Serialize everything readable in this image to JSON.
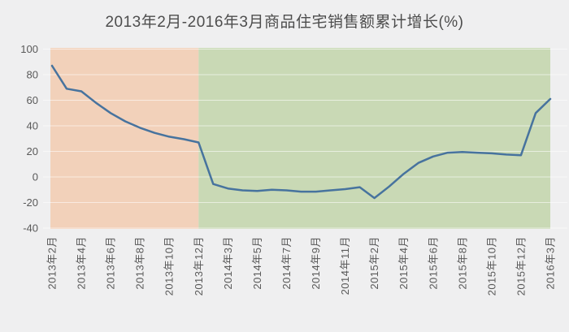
{
  "title": "2013年2月-2016年3月商品住宅销售额累计增长(%)",
  "colors": {
    "background": "#efeff0",
    "region_decline": "#f2d1ba",
    "region_growth": "#c9d9b5",
    "line": "#47739e",
    "grid": "rgba(255,255,255,0.55)",
    "title_text": "#4d4d4d",
    "axis_text": "#595959"
  },
  "chart_data": {
    "type": "line",
    "title": "2013年2月-2016年3月商品住宅销售额累计增长(%)",
    "xlabel": "",
    "ylabel": "",
    "ylim": [
      -40,
      100
    ],
    "y_ticks": [
      100,
      80,
      60,
      40,
      20,
      0,
      -20,
      -40
    ],
    "grid": true,
    "legend": "none",
    "tick_step": 2,
    "x_tick_labels_visible": [
      "2013年2月",
      "2013年4月",
      "2013年6月",
      "2013年8月",
      "2013年10月",
      "2013年12月",
      "2014年3月",
      "2014年5月",
      "2014年7月",
      "2014年9月",
      "2014年11月",
      "2015年2月",
      "2015年4月",
      "2015年6月",
      "2015年8月",
      "2015年10月",
      "2015年12月",
      "2016年3月"
    ],
    "points": [
      {
        "label": "2013年2月",
        "value": 87
      },
      {
        "label": "2013年3月",
        "value": 69
      },
      {
        "label": "2013年4月",
        "value": 67
      },
      {
        "label": "2013年5月",
        "value": 58
      },
      {
        "label": "2013年6月",
        "value": 50
      },
      {
        "label": "2013年7月",
        "value": 43.5
      },
      {
        "label": "2013年8月",
        "value": 38.5
      },
      {
        "label": "2013年9月",
        "value": 34.5
      },
      {
        "label": "2013年10月",
        "value": 31.5
      },
      {
        "label": "2013年11月",
        "value": 29.5
      },
      {
        "label": "2013年12月",
        "value": 27
      },
      {
        "label": "2014年2月",
        "value": -5.5
      },
      {
        "label": "2014年3月",
        "value": -9
      },
      {
        "label": "2014年4月",
        "value": -10.5
      },
      {
        "label": "2014年5月",
        "value": -11
      },
      {
        "label": "2014年6月",
        "value": -10
      },
      {
        "label": "2014年7月",
        "value": -10.5
      },
      {
        "label": "2014年8月",
        "value": -11.5
      },
      {
        "label": "2014年9月",
        "value": -11.5
      },
      {
        "label": "2014年10月",
        "value": -10.5
      },
      {
        "label": "2014年11月",
        "value": -9.5
      },
      {
        "label": "2014年12月",
        "value": -8
      },
      {
        "label": "2015年2月",
        "value": -16.5
      },
      {
        "label": "2015年3月",
        "value": -7.5
      },
      {
        "label": "2015年4月",
        "value": 2.5
      },
      {
        "label": "2015年5月",
        "value": 11
      },
      {
        "label": "2015年6月",
        "value": 16
      },
      {
        "label": "2015年7月",
        "value": 19
      },
      {
        "label": "2015年8月",
        "value": 19.5
      },
      {
        "label": "2015年9月",
        "value": 19
      },
      {
        "label": "2015年10月",
        "value": 18.5
      },
      {
        "label": "2015年11月",
        "value": 17.5
      },
      {
        "label": "2015年12月",
        "value": 17
      },
      {
        "label": "2016年2月",
        "value": 50
      },
      {
        "label": "2016年3月",
        "value": 61
      }
    ],
    "regions": [
      {
        "from": 0,
        "to": 10,
        "color_key": "region_decline"
      },
      {
        "from": 10,
        "to": 34,
        "color_key": "region_growth"
      }
    ]
  }
}
